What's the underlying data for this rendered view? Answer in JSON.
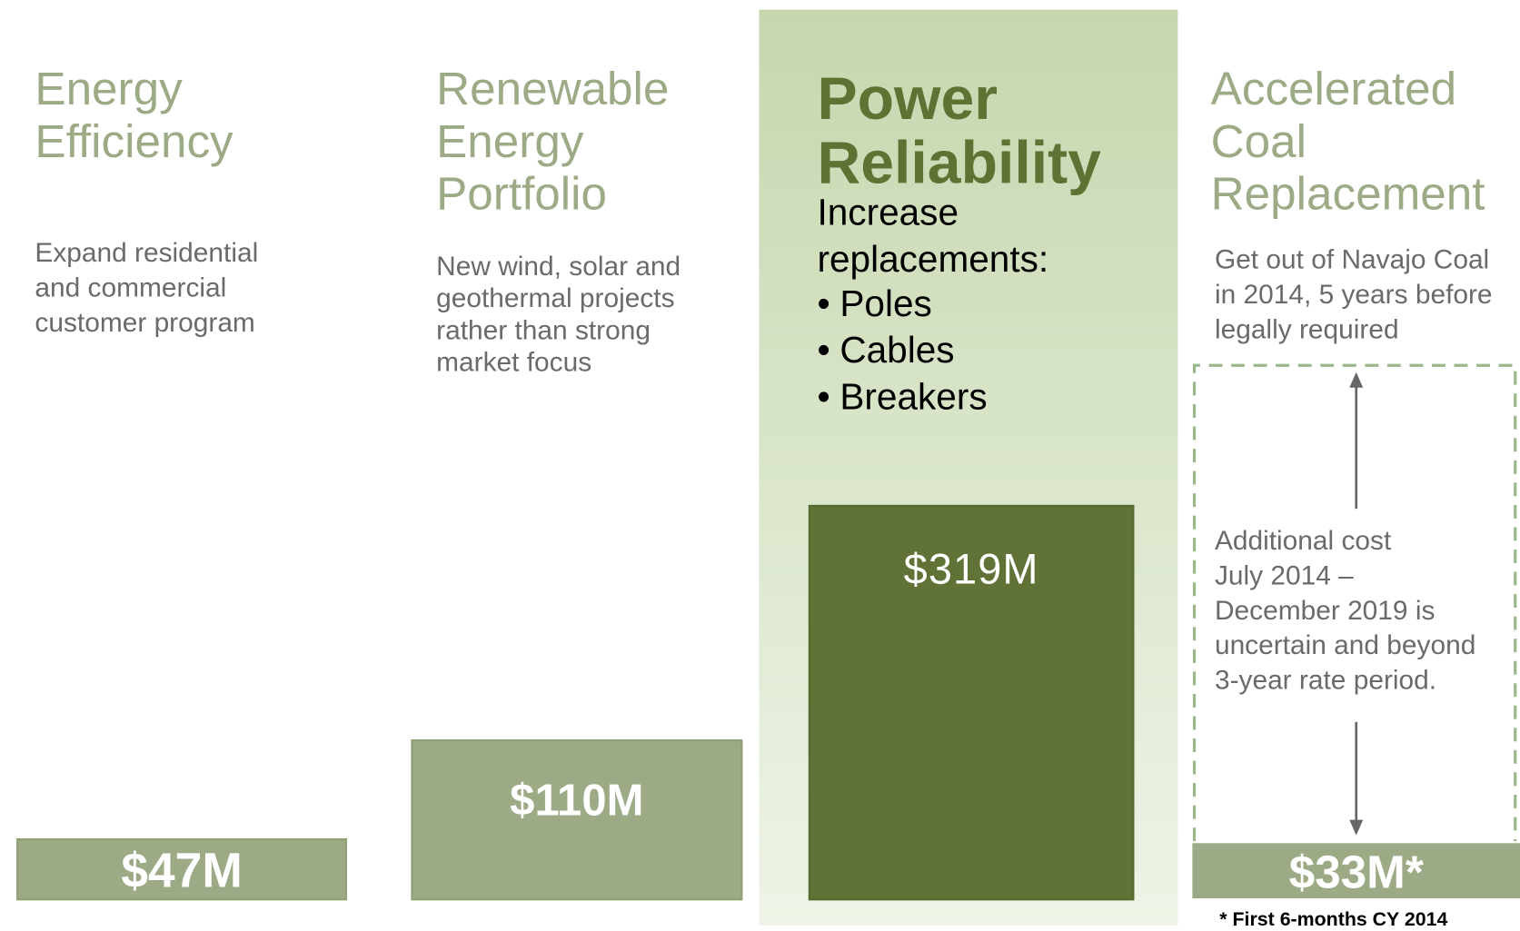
{
  "columns": [
    {
      "title": "Energy Efficiency",
      "description": [
        "Expand residential",
        "and commercial",
        "customer program"
      ],
      "amount": "$47M"
    },
    {
      "title": "Renewable Energy Portfolio",
      "description": [
        "New wind, solar and",
        "geothermal projects",
        "rather than strong",
        "market focus"
      ],
      "amount": "$110M"
    },
    {
      "title": "Power Reliability",
      "description": "Increase replacements:",
      "bullets": [
        "Poles",
        "Cables",
        "Breakers"
      ],
      "amount": "$319M"
    },
    {
      "title": "Accelerated Coal Replacement",
      "description": [
        "Get out of Navajo Coal",
        "in 2014, 5 years before",
        "legally required"
      ],
      "annotation": [
        "Additional cost",
        "July 2014 –",
        "December 2019 is",
        "uncertain and beyond",
        "3-year rate period."
      ],
      "amount": "$33M*",
      "footnote": "* First 6-months CY 2014"
    }
  ]
}
